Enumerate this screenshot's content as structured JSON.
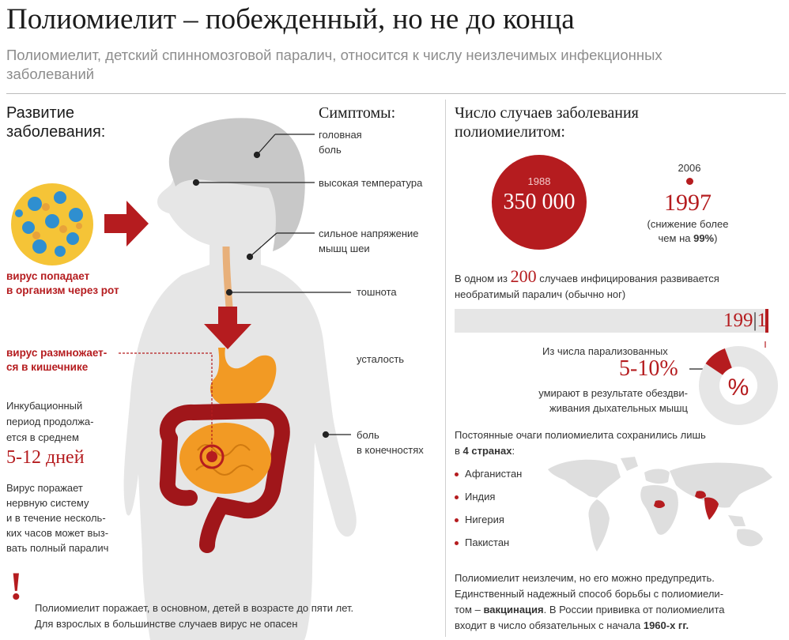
{
  "header": {
    "title": "Полиомиелит – побежденный, но не до конца",
    "subtitle": "Полиомиелит, детский спинномозговой паралич, относится к числу неизлечимых инфекционных заболеваний"
  },
  "development": {
    "heading_line1": "Развитие",
    "heading_line2": "заболевания:",
    "virus_entry_line1": "вирус попадает",
    "virus_entry_line2": "в организм через рот",
    "virus_multiply_line1": "вирус размножает-",
    "virus_multiply_line2": "ся в кишечнике",
    "incubation_line1": "Инкубационный",
    "incubation_line2": "период продолжа-",
    "incubation_line3": "ется в среднем",
    "incubation_days": "5-12 дней",
    "damage_line1": "Вирус поражает",
    "damage_line2": "нервную систему",
    "damage_line3": "и в течение несколь-",
    "damage_line4": "ких часов может выз-",
    "damage_line5": "вать полный паралич",
    "exclamation": "!",
    "footnote_line1": "Полиомиелит поражает, в основном, детей в возрасте до пяти лет.",
    "footnote_line2": "Для взрослых в большинстве случаев вирус не опасен"
  },
  "symptoms": {
    "heading": "Симптомы:",
    "headache_line1": "головная",
    "headache_line2": "боль",
    "fever": "высокая температура",
    "neck_line1": "сильное напряжение",
    "neck_line2": "мышц шеи",
    "nausea": "тошнота",
    "fatigue": "усталость",
    "limbs_line1": "боль",
    "limbs_line2": "в конечностях"
  },
  "cases": {
    "heading_line1": "Число случаев заболевания",
    "heading_line2": "полиомиелитом:",
    "year_1988": "1988",
    "value_1988": "350 000",
    "year_2006": "2006",
    "value_2006": "1997",
    "decrease_line1": "(снижение более",
    "decrease_line2_prefix": "чем на ",
    "decrease_pct": "99%",
    "decrease_line2_suffix": ")",
    "paralysis_prefix": "В одном из ",
    "paralysis_num": "200",
    "paralysis_suffix": " случаев инфицирования развивается",
    "paralysis_line2": "необратимый паралич (обычно ног)",
    "ratio_left": "199",
    "ratio_right": "1",
    "ratio_bar_fraction": 0.995,
    "paralyzed_line1": "Из числа парализованных",
    "mortality": "5-10%",
    "mortality_line1": "умирают в результате обездви-",
    "mortality_line2": "живания дыхательных мышц",
    "pie_symbol": "%",
    "pie_fraction": 0.1
  },
  "countries": {
    "intro_line1": "Постоянные очаги полиомиелита сохранились лишь",
    "intro_prefix": "в ",
    "intro_bold": "4 странах",
    "intro_suffix": ":",
    "list": [
      "Афганистан",
      "Индия",
      "Нигерия",
      "Пакистан"
    ]
  },
  "prevention": {
    "line1": "Полиомиелит неизлечим, но его можно предупредить.",
    "line2": "Единственный надежный способ борьбы с полиомиели-",
    "line3_prefix": "том – ",
    "line3_bold": "вакцинация",
    "line3_suffix": ". В России прививка от полиомиелита",
    "line4_prefix": "входит в число обязательных с начала ",
    "line4_bold": "1960-х гг."
  },
  "colors": {
    "accent_red": "#b51c1f",
    "silhouette": "#e6e6e6",
    "hair": "#c9c9c9",
    "stomach": "#f29a24",
    "intestine_dark": "#9c1417",
    "text_gray": "#8d8d8d"
  }
}
